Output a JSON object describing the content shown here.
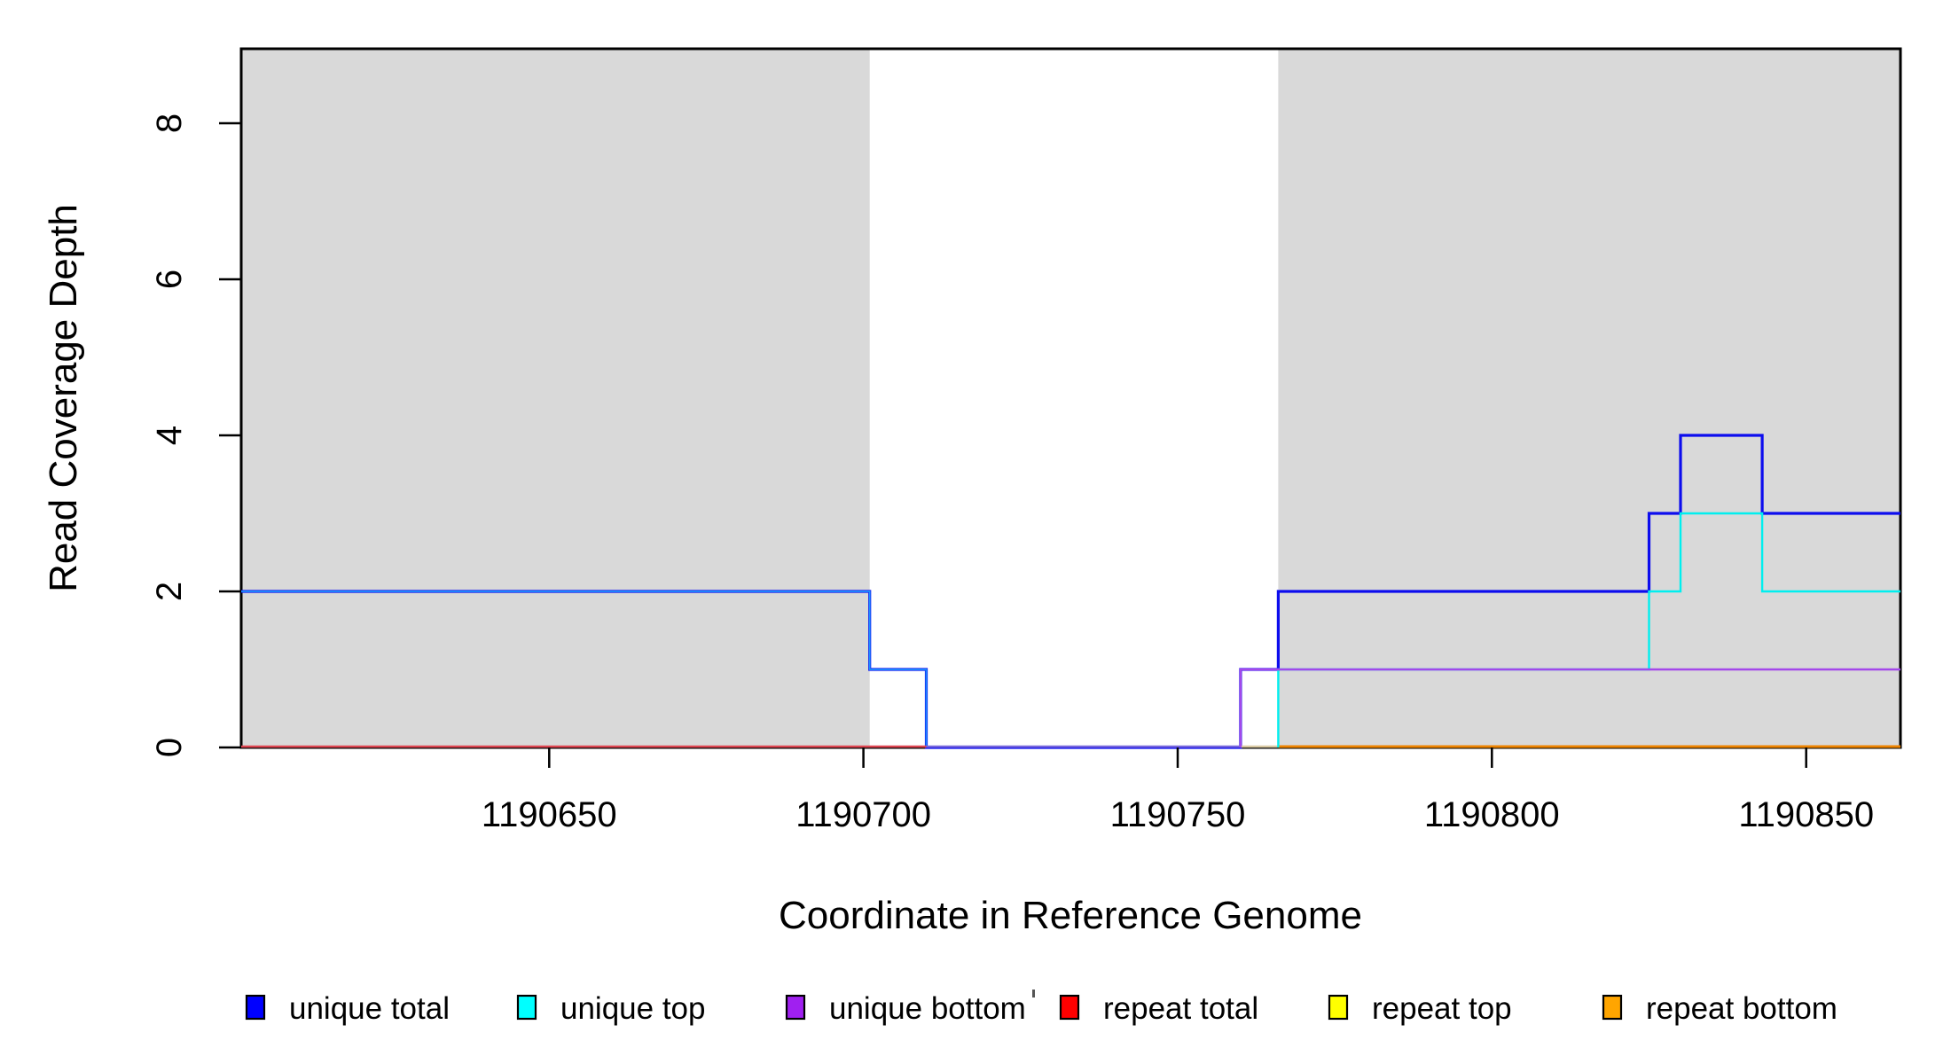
{
  "chart_data": {
    "type": "line",
    "subtype": "step-coverage-plot",
    "title": "",
    "xlabel": "Coordinate in Reference Genome",
    "ylabel": "Read Coverage Depth",
    "xlim": [
      1190601,
      1190865
    ],
    "ylim": [
      0,
      9
    ],
    "x_ticks": [
      1190650,
      1190700,
      1190750,
      1190800,
      1190850
    ],
    "y_ticks": [
      0,
      2,
      4,
      6,
      8
    ],
    "grid": false,
    "legend_position": "bottom",
    "background_color": "#ffffff",
    "shaded_region_color": "#d9d9d9",
    "shaded_regions": [
      {
        "x0": 1190601,
        "x1": 1190701
      },
      {
        "x0": 1190766,
        "x1": 1190865
      }
    ],
    "series": [
      {
        "name": "unique total",
        "color": "#0000ee",
        "points": [
          [
            1190601,
            2
          ],
          [
            1190701,
            1
          ],
          [
            1190710,
            0
          ],
          [
            1190760,
            1
          ],
          [
            1190766,
            2
          ],
          [
            1190825,
            3
          ],
          [
            1190830,
            4
          ],
          [
            1190843,
            3
          ],
          [
            1190865,
            3
          ]
        ]
      },
      {
        "name": "unique top",
        "color": "#00eeee",
        "points": [
          [
            1190601,
            2
          ],
          [
            1190701,
            1
          ],
          [
            1190710,
            0
          ],
          [
            1190766,
            1
          ],
          [
            1190825,
            2
          ],
          [
            1190830,
            3
          ],
          [
            1190843,
            2
          ],
          [
            1190865,
            2
          ]
        ]
      },
      {
        "name": "unique bottom",
        "color": "#a020f0",
        "points": [
          [
            1190601,
            0
          ],
          [
            1190760,
            1
          ],
          [
            1190865,
            1
          ]
        ]
      },
      {
        "name": "repeat total",
        "color": "#ff0000",
        "points": [
          [
            1190601,
            0
          ],
          [
            1190865,
            0
          ]
        ]
      },
      {
        "name": "repeat top",
        "color": "#ffff00",
        "points": [
          [
            1190601,
            0
          ],
          [
            1190865,
            0
          ]
        ]
      },
      {
        "name": "repeat bottom",
        "color": "#ffa500",
        "points": [
          [
            1190601,
            0
          ],
          [
            1190865,
            0
          ]
        ]
      }
    ],
    "visible_baseline_segments": [
      {
        "label": "repeat total visible",
        "x0": 1190601,
        "x1": 1190710,
        "y": 0,
        "color": "#dd4450",
        "width": 2.6
      },
      {
        "label": "unique bottom visible",
        "x0": 1190710,
        "x1": 1190760,
        "y": 0,
        "color": "#7565da",
        "width": 2.6
      },
      {
        "label": "repeat top visible",
        "x0": 1190760,
        "x1": 1190766,
        "y": 0,
        "color": "#d9c9a3",
        "width": 2.4
      },
      {
        "label": "repeat bottom visible",
        "x0": 1190766,
        "x1": 1190865,
        "y": 0,
        "color": "#ee8400",
        "width": 3.0
      }
    ],
    "legend": [
      {
        "label": "unique total",
        "color": "#0000ff"
      },
      {
        "label": "unique top",
        "color": "#00ffff"
      },
      {
        "label": "unique bottom",
        "color": "#a020f0"
      },
      {
        "label": "repeat total",
        "color": "#ff0000"
      },
      {
        "label": "repeat top",
        "color": "#ffff00"
      },
      {
        "label": "repeat bottom",
        "color": "#ffa500"
      }
    ]
  }
}
